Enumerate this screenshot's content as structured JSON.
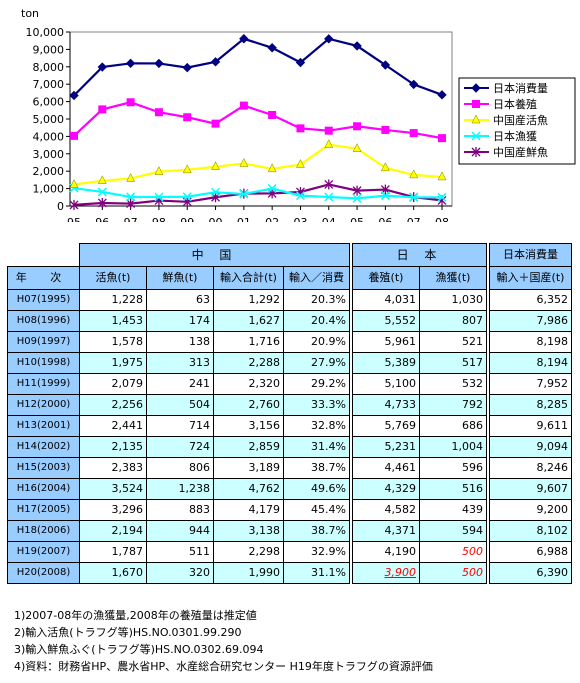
{
  "chart_data": {
    "type": "line",
    "ylabel": "ton",
    "ylim": [
      0,
      10000
    ],
    "yticks": [
      "0",
      "1,000",
      "2,000",
      "3,000",
      "4,000",
      "5,000",
      "6,000",
      "7,000",
      "8,000",
      "9,000",
      "10,000"
    ],
    "categories": [
      "95",
      "96",
      "97",
      "98",
      "99",
      "00",
      "01",
      "02",
      "03",
      "04",
      "05",
      "06",
      "07",
      "08"
    ],
    "legend_position": "right",
    "series": [
      {
        "name": "日本消費量",
        "color": "#000080",
        "marker": "diamond",
        "values": [
          6352,
          7986,
          8198,
          8194,
          7952,
          8285,
          9611,
          9094,
          8246,
          9607,
          9200,
          8102,
          6988,
          6390
        ]
      },
      {
        "name": "日本養殖",
        "color": "#ff00ff",
        "marker": "square",
        "values": [
          4031,
          5552,
          5961,
          5389,
          5100,
          4733,
          5769,
          5231,
          4461,
          4329,
          4582,
          4371,
          4190,
          3900
        ]
      },
      {
        "name": "中国産活魚",
        "color": "#ffff00",
        "marker": "triangle",
        "values": [
          1228,
          1453,
          1578,
          1975,
          2079,
          2256,
          2441,
          2135,
          2383,
          3524,
          3296,
          2194,
          1787,
          1670
        ]
      },
      {
        "name": "日本漁獲",
        "color": "#00ffff",
        "marker": "x",
        "values": [
          1030,
          807,
          521,
          517,
          532,
          792,
          686,
          1004,
          596,
          516,
          439,
          594,
          500,
          500
        ]
      },
      {
        "name": "中国産鮮魚",
        "color": "#800080",
        "marker": "star",
        "values": [
          63,
          174,
          138,
          313,
          241,
          504,
          714,
          724,
          806,
          1238,
          883,
          944,
          511,
          320
        ]
      }
    ]
  },
  "table": {
    "group_headers": {
      "china": "中 国",
      "japan": "日 本",
      "consumption": "日本消費量"
    },
    "column_headers": {
      "year": "年 次",
      "live": "活魚(t)",
      "fresh": "鮮魚(t)",
      "import_total": "輸入合計(t)",
      "import_ratio": "輸入／消費",
      "aquaculture": "養殖(t)",
      "catch": "漁獲(t)",
      "consumption": "輸入＋国産(t)"
    },
    "rows": [
      {
        "year": "H07(1995)",
        "live": "1,228",
        "fresh": "63",
        "total": "1,292",
        "ratio": "20.3%",
        "aqua": "4,031",
        "catch": "1,030",
        "cons": "6,352"
      },
      {
        "year": "H08(1996)",
        "live": "1,453",
        "fresh": "174",
        "total": "1,627",
        "ratio": "20.4%",
        "aqua": "5,552",
        "catch": "807",
        "cons": "7,986"
      },
      {
        "year": "H09(1997)",
        "live": "1,578",
        "fresh": "138",
        "total": "1,716",
        "ratio": "20.9%",
        "aqua": "5,961",
        "catch": "521",
        "cons": "8,198"
      },
      {
        "year": "H10(1998)",
        "live": "1,975",
        "fresh": "313",
        "total": "2,288",
        "ratio": "27.9%",
        "aqua": "5,389",
        "catch": "517",
        "cons": "8,194"
      },
      {
        "year": "H11(1999)",
        "live": "2,079",
        "fresh": "241",
        "total": "2,320",
        "ratio": "29.2%",
        "aqua": "5,100",
        "catch": "532",
        "cons": "7,952"
      },
      {
        "year": "H12(2000)",
        "live": "2,256",
        "fresh": "504",
        "total": "2,760",
        "ratio": "33.3%",
        "aqua": "4,733",
        "catch": "792",
        "cons": "8,285"
      },
      {
        "year": "H13(2001)",
        "live": "2,441",
        "fresh": "714",
        "total": "3,156",
        "ratio": "32.8%",
        "aqua": "5,769",
        "catch": "686",
        "cons": "9,611"
      },
      {
        "year": "H14(2002)",
        "live": "2,135",
        "fresh": "724",
        "total": "2,859",
        "ratio": "31.4%",
        "aqua": "5,231",
        "catch": "1,004",
        "cons": "9,094"
      },
      {
        "year": "H15(2003)",
        "live": "2,383",
        "fresh": "806",
        "total": "3,189",
        "ratio": "38.7%",
        "aqua": "4,461",
        "catch": "596",
        "cons": "8,246"
      },
      {
        "year": "H16(2004)",
        "live": "3,524",
        "fresh": "1,238",
        "total": "4,762",
        "ratio": "49.6%",
        "aqua": "4,329",
        "catch": "516",
        "cons": "9,607"
      },
      {
        "year": "H17(2005)",
        "live": "3,296",
        "fresh": "883",
        "total": "4,179",
        "ratio": "45.4%",
        "aqua": "4,582",
        "catch": "439",
        "cons": "9,200"
      },
      {
        "year": "H18(2006)",
        "live": "2,194",
        "fresh": "944",
        "total": "3,138",
        "ratio": "38.7%",
        "aqua": "4,371",
        "catch": "594",
        "cons": "8,102"
      },
      {
        "year": "H19(2007)",
        "live": "1,787",
        "fresh": "511",
        "total": "2,298",
        "ratio": "32.9%",
        "aqua": "4,190",
        "catch": "500",
        "cons": "6,988"
      },
      {
        "year": "H20(2008)",
        "live": "1,670",
        "fresh": "320",
        "total": "1,990",
        "ratio": "31.1%",
        "aqua": "3,900",
        "catch": "500",
        "cons": "6,390"
      }
    ]
  },
  "notes": [
    "1)2007-08年の漁獲量,2008年の養殖量は推定値",
    "2)輸入活魚(トラフグ等)HS.NO.0301.99.290",
    "3)輸入鮮魚ふぐ(トラフグ等)HS.NO.0302.69.094",
    "4)資料：財務省HP、農水省HP、水産総合研究センター H19年度トラフグの資源評価"
  ]
}
